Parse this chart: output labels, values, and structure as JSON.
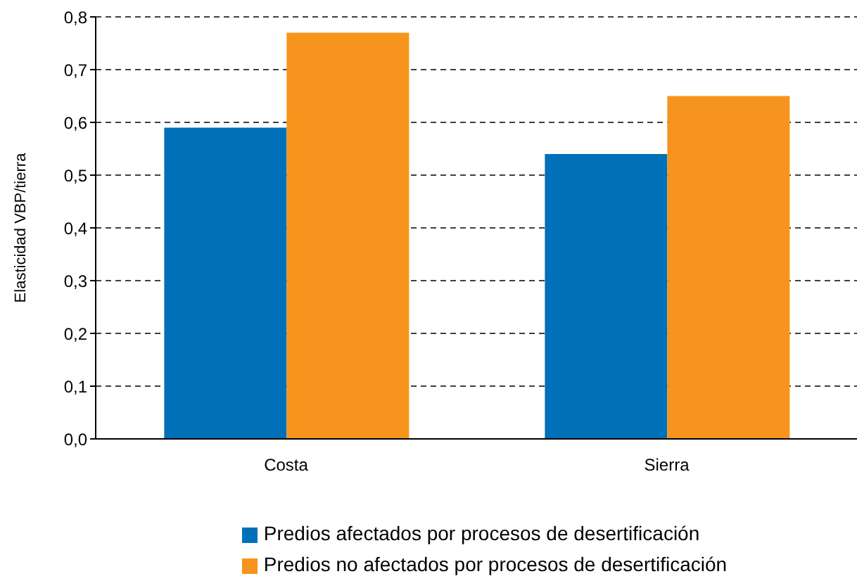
{
  "chart_data": {
    "type": "bar",
    "ylabel": "Elasticidad VBP/tierra",
    "categories": [
      "Costa",
      "Sierra"
    ],
    "series": [
      {
        "name": "Predios afectados por procesos de desertificación",
        "color": "#0070b8",
        "values": [
          0.59,
          0.54
        ]
      },
      {
        "name": "Predios no afectados por procesos de desertificación",
        "color": "#f7941d",
        "values": [
          0.77,
          0.65
        ]
      }
    ],
    "ylim": [
      0,
      0.8
    ],
    "yticks": [
      {
        "value": 0,
        "label": "0,0"
      },
      {
        "value": 0.1,
        "label": "0,1"
      },
      {
        "value": 0.2,
        "label": "0,2"
      },
      {
        "value": 0.3,
        "label": "0,3"
      },
      {
        "value": 0.4,
        "label": "0,4"
      },
      {
        "value": 0.5,
        "label": "0,5"
      },
      {
        "value": 0.6,
        "label": "0,6"
      },
      {
        "value": 0.7,
        "label": "0,7"
      },
      {
        "value": 0.8,
        "label": "0,8"
      }
    ],
    "grid": "y",
    "legend": "bottom"
  }
}
